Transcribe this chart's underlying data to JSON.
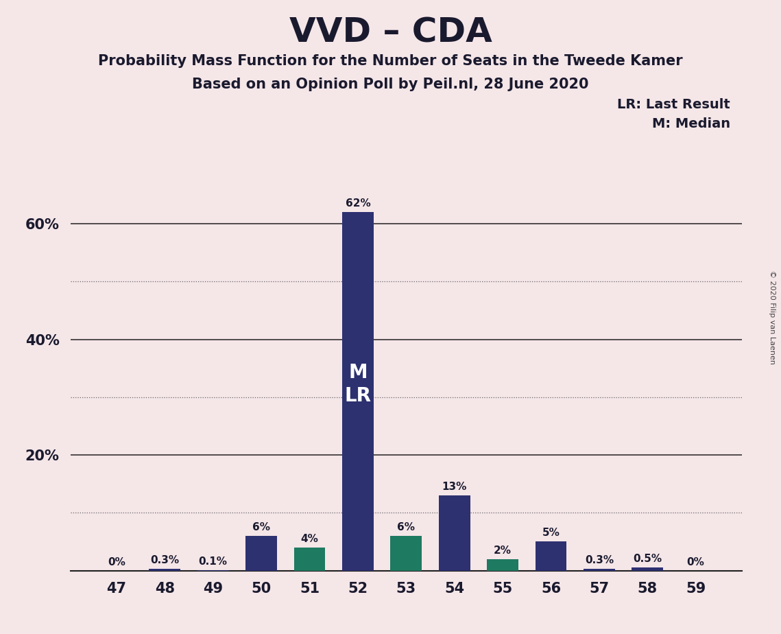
{
  "title": "VVD – CDA",
  "subtitle1": "Probability Mass Function for the Number of Seats in the Tweede Kamer",
  "subtitle2": "Based on an Opinion Poll by Peil.nl, 28 June 2020",
  "copyright": "© 2020 Filip van Laenen",
  "seats": [
    47,
    48,
    49,
    50,
    51,
    52,
    53,
    54,
    55,
    56,
    57,
    58,
    59
  ],
  "values": [
    0.0,
    0.3,
    0.1,
    6.0,
    4.0,
    62.0,
    6.0,
    13.0,
    2.0,
    5.0,
    0.3,
    0.5,
    0.0
  ],
  "labels": [
    "0%",
    "0.3%",
    "0.1%",
    "6%",
    "4%",
    "62%",
    "6%",
    "13%",
    "2%",
    "5%",
    "0.3%",
    "0.5%",
    "0%"
  ],
  "bar_colors": [
    "#2d3170",
    "#2d3170",
    "#2d3170",
    "#2d3170",
    "#1e7a60",
    "#2d3170",
    "#1e7a60",
    "#2d3170",
    "#1e7a60",
    "#2d3170",
    "#2d3170",
    "#2d3170",
    "#2d3170"
  ],
  "median_seat": 52,
  "last_result_seat": 52,
  "background_color": "#f5e6e8",
  "bar_label_color": "#1a1a2e",
  "legend_lr": "LR: Last Result",
  "legend_m": "M: Median",
  "ylim": [
    0,
    68
  ],
  "ytick_positions": [
    20,
    40,
    60
  ],
  "ytick_labels": [
    "20%",
    "40%",
    "60%"
  ],
  "dotted_ticks": [
    10,
    30,
    50
  ],
  "solid_ticks": [
    20,
    40,
    60
  ]
}
